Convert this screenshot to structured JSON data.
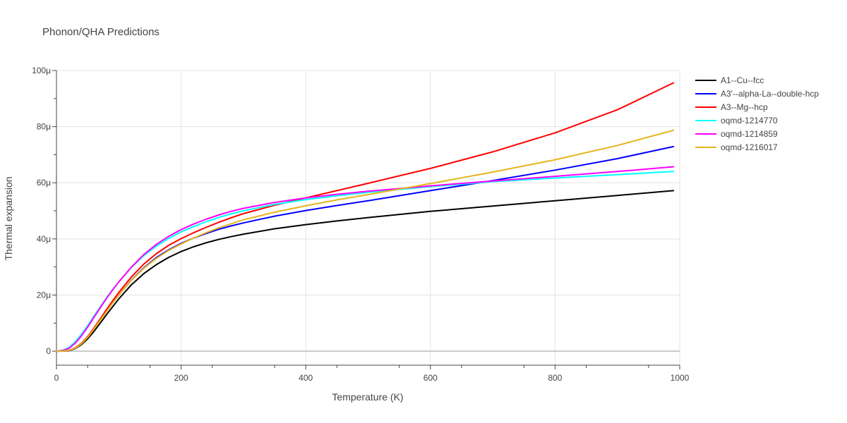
{
  "chart_data": {
    "type": "line",
    "title": "Phonon/QHA Predictions",
    "xlabel": "Temperature (K)",
    "ylabel": "Thermal expansion",
    "xlim": [
      0,
      1000
    ],
    "ylim": [
      -5e-06,
      0.0001
    ],
    "grid": true,
    "legend_position": "right",
    "x_ticks": [
      0,
      200,
      400,
      600,
      800,
      1000
    ],
    "x_tick_labels": [
      "0",
      "200",
      "400",
      "600",
      "800",
      "1000"
    ],
    "y_ticks": [
      0,
      2e-05,
      4e-05,
      6e-05,
      8e-05,
      0.0001
    ],
    "y_tick_labels": [
      "0",
      "20μ",
      "40μ",
      "60μ",
      "80μ",
      "100μ"
    ],
    "series": [
      {
        "name": "A1--Cu--fcc",
        "color": "#000000",
        "x": [
          0,
          10,
          20,
          30,
          40,
          50,
          60,
          70,
          80,
          90,
          100,
          120,
          140,
          160,
          180,
          200,
          220,
          240,
          260,
          280,
          300,
          350,
          400,
          450,
          500,
          600,
          700,
          800,
          900,
          990
        ],
        "y": [
          0,
          3e-08,
          2e-07,
          9e-07,
          2.3e-06,
          4.4e-06,
          7e-06,
          9.9e-06,
          1.29e-05,
          1.58e-05,
          1.86e-05,
          2.36e-05,
          2.76e-05,
          3.08e-05,
          3.34e-05,
          3.55e-05,
          3.72e-05,
          3.86e-05,
          3.98e-05,
          4.08e-05,
          4.17e-05,
          4.36e-05,
          4.51e-05,
          4.64e-05,
          4.76e-05,
          4.98e-05,
          5.17e-05,
          5.36e-05,
          5.55e-05,
          5.72e-05
        ]
      },
      {
        "name": "A3'--alpha-La--double-hcp",
        "color": "#0000ff",
        "x": [
          0,
          10,
          20,
          30,
          40,
          50,
          60,
          70,
          80,
          90,
          100,
          120,
          140,
          160,
          180,
          200,
          220,
          240,
          260,
          280,
          300,
          350,
          400,
          450,
          500,
          600,
          700,
          800,
          900,
          990
        ],
        "y": [
          0,
          4e-08,
          3e-07,
          1.1e-06,
          2.7e-06,
          5e-06,
          7.9e-06,
          1.1e-05,
          1.41e-05,
          1.72e-05,
          2e-05,
          2.53e-05,
          2.97e-05,
          3.33e-05,
          3.61e-05,
          3.84e-05,
          4.03e-05,
          4.19e-05,
          4.34e-05,
          4.46e-05,
          4.57e-05,
          4.81e-05,
          5.01e-05,
          5.19e-05,
          5.36e-05,
          5.72e-05,
          6.08e-05,
          6.45e-05,
          6.86e-05,
          7.29e-05
        ]
      },
      {
        "name": "A3--Mg--hcp",
        "color": "#ff0000",
        "x": [
          0,
          10,
          20,
          30,
          40,
          50,
          60,
          70,
          80,
          90,
          100,
          120,
          140,
          160,
          180,
          200,
          220,
          240,
          260,
          280,
          300,
          350,
          400,
          450,
          500,
          600,
          700,
          800,
          900,
          990
        ],
        "y": [
          0,
          4e-08,
          3e-07,
          1.1e-06,
          2.8e-06,
          5.2e-06,
          8.2e-06,
          1.14e-05,
          1.47e-05,
          1.79e-05,
          2.09e-05,
          2.64e-05,
          3.1e-05,
          3.47e-05,
          3.77e-05,
          4.01e-05,
          4.22e-05,
          4.41e-05,
          4.59e-05,
          4.75e-05,
          4.9e-05,
          5.2e-05,
          5.46e-05,
          5.72e-05,
          5.98e-05,
          6.51e-05,
          7.1e-05,
          7.78e-05,
          8.6e-05,
          9.56e-05
        ]
      },
      {
        "name": "oqmd-1214770",
        "color": "#00ffff",
        "x": [
          0,
          10,
          20,
          30,
          40,
          50,
          60,
          70,
          80,
          90,
          100,
          120,
          140,
          160,
          180,
          200,
          220,
          240,
          260,
          280,
          300,
          350,
          400,
          450,
          500,
          600,
          700,
          800,
          900,
          990
        ],
        "y": [
          0,
          3e-07,
          1.3e-06,
          3.3e-06,
          6e-06,
          9.1e-06,
          1.24e-05,
          1.57e-05,
          1.89e-05,
          2.19e-05,
          2.47e-05,
          2.98e-05,
          3.4e-05,
          3.74e-05,
          4.02e-05,
          4.25e-05,
          4.44e-05,
          4.61e-05,
          4.76e-05,
          4.89e-05,
          5e-05,
          5.23e-05,
          5.4e-05,
          5.54e-05,
          5.66e-05,
          5.86e-05,
          6.04e-05,
          6.17e-05,
          6.29e-05,
          6.4e-05
        ]
      },
      {
        "name": "oqmd-1214859",
        "color": "#ff00ff",
        "x": [
          0,
          10,
          20,
          30,
          40,
          50,
          60,
          70,
          80,
          90,
          100,
          120,
          140,
          160,
          180,
          200,
          220,
          240,
          260,
          280,
          300,
          350,
          400,
          450,
          500,
          600,
          700,
          800,
          900,
          990
        ],
        "y": [
          0,
          2e-07,
          1e-06,
          2.8e-06,
          5.4e-06,
          8.6e-06,
          1.2e-05,
          1.54e-05,
          1.87e-05,
          2.18e-05,
          2.47e-05,
          2.99e-05,
          3.44e-05,
          3.8e-05,
          4.09e-05,
          4.33e-05,
          4.53e-05,
          4.7e-05,
          4.85e-05,
          4.98e-05,
          5.09e-05,
          5.3e-05,
          5.46e-05,
          5.59e-05,
          5.7e-05,
          5.89e-05,
          6.06e-05,
          6.23e-05,
          6.4e-05,
          6.57e-05
        ]
      },
      {
        "name": "oqmd-1216017",
        "color": "#e6b41e",
        "x": [
          0,
          10,
          20,
          30,
          40,
          50,
          60,
          70,
          80,
          90,
          100,
          120,
          140,
          160,
          180,
          200,
          220,
          240,
          260,
          280,
          300,
          350,
          400,
          450,
          500,
          600,
          700,
          800,
          900,
          990
        ],
        "y": [
          0,
          3e-08,
          3e-07,
          1e-06,
          2.6e-06,
          4.9e-06,
          7.8e-06,
          1.09e-05,
          1.4e-05,
          1.71e-05,
          2e-05,
          2.52e-05,
          2.95e-05,
          3.3e-05,
          3.59e-05,
          3.82e-05,
          4.03e-05,
          4.22e-05,
          4.39e-05,
          4.54e-05,
          4.68e-05,
          4.95e-05,
          5.18e-05,
          5.39e-05,
          5.58e-05,
          5.97e-05,
          6.38e-05,
          6.82e-05,
          7.33e-05,
          7.87e-05
        ]
      }
    ]
  }
}
